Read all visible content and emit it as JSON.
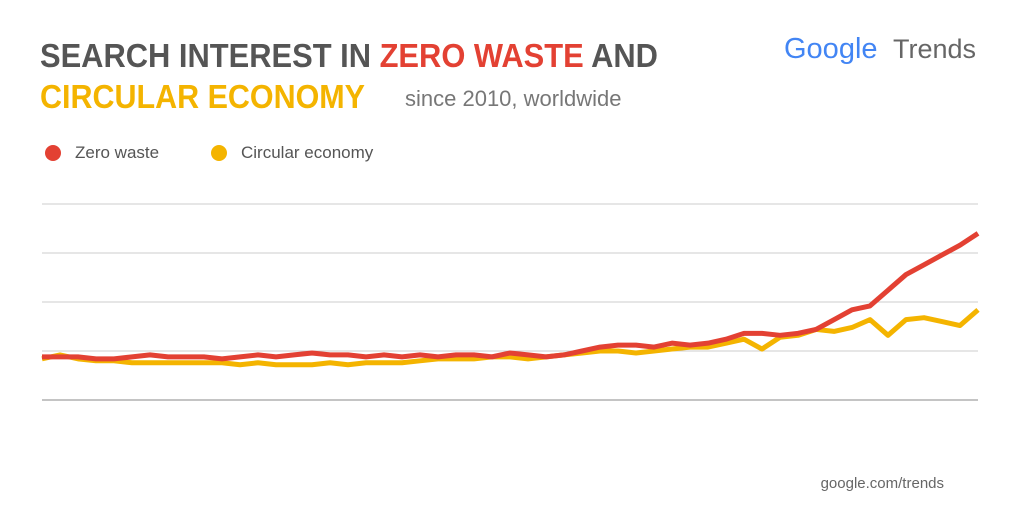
{
  "chart_data": {
    "type": "line",
    "title": {
      "part1": "SEARCH INTEREST IN ",
      "part2": "ZERO WASTE",
      "part3": " AND",
      "part4": "CIRCULAR ECONOMY"
    },
    "subtitle": "since 2010, worldwide",
    "logo": {
      "brand": "Google",
      "product": "Trends"
    },
    "source": "google.com/trends",
    "ylim": [
      0,
      100
    ],
    "yticks": [
      0,
      25,
      50,
      75,
      100
    ],
    "grid": true,
    "series": [
      {
        "name": "Zero waste",
        "color": "#e34133",
        "values": [
          22,
          22,
          22,
          21,
          21,
          22,
          23,
          22,
          22,
          22,
          21,
          22,
          23,
          22,
          23,
          24,
          23,
          23,
          22,
          23,
          22,
          23,
          22,
          23,
          23,
          22,
          24,
          23,
          22,
          23,
          25,
          27,
          28,
          28,
          27,
          29,
          28,
          29,
          31,
          34,
          34,
          33,
          34,
          36,
          41,
          46,
          48,
          56,
          64,
          69,
          74,
          79,
          85
        ]
      },
      {
        "name": "Circular economy",
        "color": "#f4b400",
        "values": [
          21,
          23,
          21,
          20,
          20,
          19,
          19,
          19,
          19,
          19,
          19,
          18,
          19,
          18,
          18,
          18,
          19,
          18,
          19,
          19,
          19,
          20,
          21,
          21,
          21,
          22,
          22,
          21,
          22,
          23,
          24,
          25,
          25,
          24,
          25,
          26,
          27,
          27,
          29,
          31,
          26,
          32,
          33,
          36,
          35,
          37,
          41,
          33,
          41,
          42,
          40,
          38,
          46
        ]
      }
    ]
  }
}
